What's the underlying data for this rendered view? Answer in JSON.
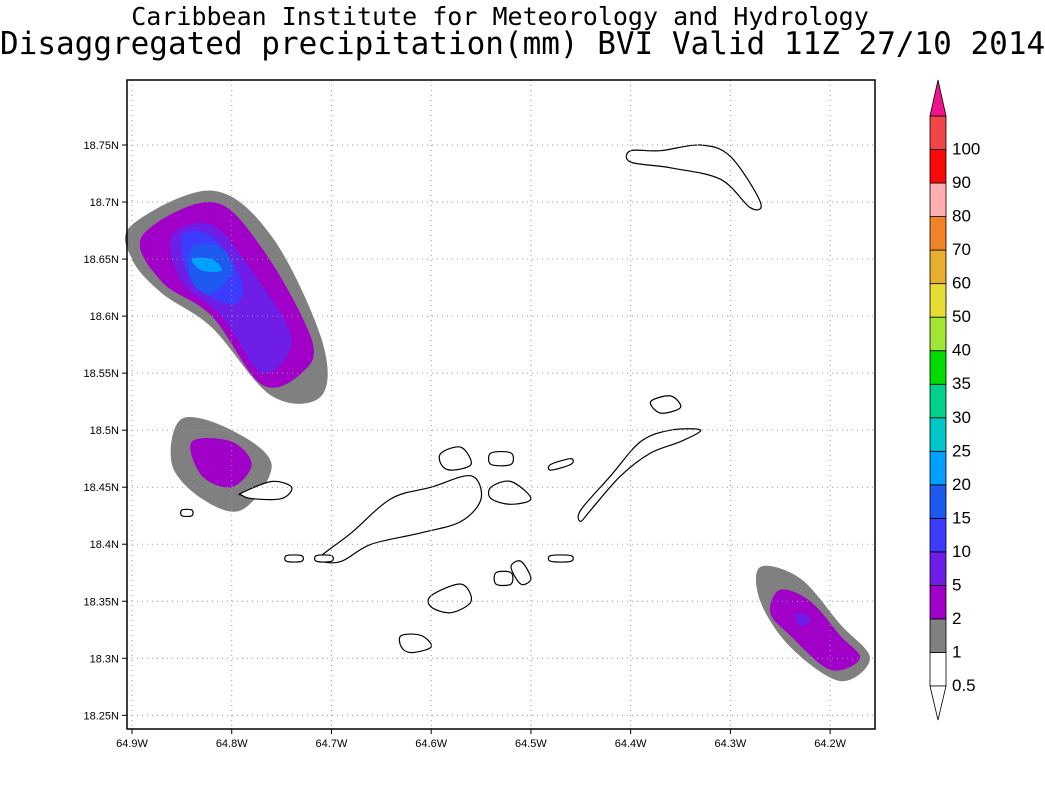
{
  "header": {
    "title_line1": "Caribbean Institute for Meteorology and Hydrology",
    "title_line2": "Disaggregated precipitation(mm) BVI Valid 11Z 27/10 2014"
  },
  "map": {
    "lon_range": [
      -64.905,
      -64.155
    ],
    "lat_range": [
      18.238,
      18.807
    ],
    "x_ticks": [
      {
        "v": -64.9,
        "label": "64.9W"
      },
      {
        "v": -64.8,
        "label": "64.8W"
      },
      {
        "v": -64.7,
        "label": "64.7W"
      },
      {
        "v": -64.6,
        "label": "64.6W"
      },
      {
        "v": -64.5,
        "label": "64.5W"
      },
      {
        "v": -64.4,
        "label": "64.4W"
      },
      {
        "v": -64.3,
        "label": "64.3W"
      },
      {
        "v": -64.2,
        "label": "64.2W"
      }
    ],
    "y_ticks": [
      {
        "v": 18.25,
        "label": "18.25N"
      },
      {
        "v": 18.3,
        "label": "18.3N"
      },
      {
        "v": 18.35,
        "label": "18.35N"
      },
      {
        "v": 18.4,
        "label": "18.4N"
      },
      {
        "v": 18.45,
        "label": "18.45N"
      },
      {
        "v": 18.5,
        "label": "18.5N"
      },
      {
        "v": 18.55,
        "label": "18.55N"
      },
      {
        "v": 18.6,
        "label": "18.6N"
      },
      {
        "v": 18.65,
        "label": "18.65N"
      },
      {
        "v": 18.7,
        "label": "18.7N"
      },
      {
        "v": 18.75,
        "label": "18.75N"
      }
    ],
    "grid": "dotted"
  },
  "legend": {
    "unit": "mm",
    "bins": [
      {
        "label": "0.5",
        "color": "#ffffff"
      },
      {
        "label": "1",
        "color": "#808080"
      },
      {
        "label": "2",
        "color": "#a000c8"
      },
      {
        "label": "5",
        "color": "#6e1ee6"
      },
      {
        "label": "10",
        "color": "#3c3cff"
      },
      {
        "label": "15",
        "color": "#1e5af0"
      },
      {
        "label": "20",
        "color": "#00a0ff"
      },
      {
        "label": "25",
        "color": "#00c8c8"
      },
      {
        "label": "30",
        "color": "#00d28c"
      },
      {
        "label": "35",
        "color": "#00dc00"
      },
      {
        "label": "40",
        "color": "#a0e632"
      },
      {
        "label": "50",
        "color": "#e6dc32"
      },
      {
        "label": "60",
        "color": "#e6af2d"
      },
      {
        "label": "70",
        "color": "#f08228"
      },
      {
        "label": "80",
        "color": "#ffafaf"
      },
      {
        "label": "90",
        "color": "#fa0a0a"
      },
      {
        "label": "100",
        "color": "#f04646"
      }
    ],
    "top_arrow_color": "#f0148c",
    "bottom_arrow_color": "#ffffff"
  },
  "precip_cells": [
    {
      "name": "northwest-cell",
      "levels": [
        {
          "color": "#808080",
          "lon": [
            -64.9,
            -64.82,
            -64.76,
            -64.71,
            -64.71,
            -64.76,
            -64.82,
            -64.87,
            -64.9
          ],
          "lat": [
            18.68,
            18.71,
            18.67,
            18.58,
            18.53,
            18.53,
            18.59,
            18.62,
            18.65
          ]
        },
        {
          "color": "#a000c8",
          "lon": [
            -64.89,
            -64.82,
            -64.77,
            -64.72,
            -64.73,
            -64.77,
            -64.82,
            -64.87
          ],
          "lat": [
            18.67,
            18.7,
            18.66,
            18.58,
            18.55,
            18.54,
            18.6,
            18.63
          ]
        },
        {
          "color": "#6e1ee6",
          "lon": [
            -64.86,
            -64.82,
            -64.78,
            -64.74,
            -64.77,
            -64.81,
            -64.85
          ],
          "lat": [
            18.67,
            18.68,
            18.64,
            18.58,
            18.55,
            18.6,
            18.63
          ]
        },
        {
          "color": "#3c3cff",
          "lon": [
            -64.85,
            -64.82,
            -64.79,
            -64.8,
            -64.84
          ],
          "lat": [
            18.67,
            18.67,
            18.63,
            18.61,
            18.63
          ]
        },
        {
          "color": "#1e5af0",
          "lon": [
            -64.84,
            -64.81,
            -64.8,
            -64.82,
            -64.84
          ],
          "lat": [
            18.66,
            18.66,
            18.64,
            18.62,
            18.63
          ]
        },
        {
          "color": "#00a0ff",
          "lon": [
            -64.84,
            -64.82,
            -64.81,
            -64.83
          ],
          "lat": [
            18.65,
            18.65,
            18.64,
            18.64
          ]
        }
      ]
    },
    {
      "name": "west-cell",
      "levels": [
        {
          "color": "#808080",
          "lon": [
            -64.85,
            -64.8,
            -64.76,
            -64.79,
            -64.83,
            -64.86
          ],
          "lat": [
            18.51,
            18.5,
            18.47,
            18.43,
            18.44,
            18.47
          ]
        },
        {
          "color": "#a000c8",
          "lon": [
            -64.84,
            -64.8,
            -64.78,
            -64.8,
            -64.83
          ],
          "lat": [
            18.49,
            18.49,
            18.47,
            18.45,
            18.46
          ]
        }
      ]
    },
    {
      "name": "southeast-cell",
      "levels": [
        {
          "color": "#808080",
          "lon": [
            -64.27,
            -64.23,
            -64.19,
            -64.16,
            -64.19,
            -64.24,
            -64.27
          ],
          "lat": [
            18.38,
            18.37,
            18.33,
            18.3,
            18.28,
            18.31,
            18.35
          ]
        },
        {
          "color": "#a000c8",
          "lon": [
            -64.25,
            -64.22,
            -64.19,
            -64.17,
            -64.2,
            -64.24,
            -64.26
          ],
          "lat": [
            18.36,
            18.35,
            18.32,
            18.3,
            18.29,
            18.32,
            18.34
          ]
        },
        {
          "color": "#6e1ee6",
          "lon": [
            -64.235,
            -64.225,
            -64.22,
            -64.23
          ],
          "lat": [
            18.338,
            18.338,
            18.333,
            18.328
          ]
        }
      ]
    }
  ],
  "islands": [
    {
      "name": "anegada",
      "lon": [
        -64.4,
        -64.37,
        -64.33,
        -64.3,
        -64.27,
        -64.28,
        -64.31,
        -64.36,
        -64.4
      ],
      "lat": [
        18.745,
        18.745,
        18.75,
        18.74,
        18.7,
        18.695,
        18.72,
        18.73,
        18.735
      ]
    },
    {
      "name": "tortola",
      "lon": [
        -64.71,
        -64.68,
        -64.64,
        -64.6,
        -64.56,
        -64.55,
        -64.57,
        -64.61,
        -64.66,
        -64.69,
        -64.71
      ],
      "lat": [
        18.39,
        18.41,
        18.44,
        18.45,
        18.46,
        18.44,
        18.42,
        18.41,
        18.4,
        18.385,
        18.385
      ]
    },
    {
      "name": "virgin-gorda",
      "lon": [
        -64.45,
        -64.42,
        -64.39,
        -64.36,
        -64.33,
        -64.35,
        -64.38,
        -64.41,
        -64.44,
        -64.45
      ],
      "lat": [
        18.43,
        18.46,
        18.49,
        18.5,
        18.5,
        18.49,
        18.48,
        18.46,
        18.43,
        18.42
      ]
    },
    {
      "name": "jost-van-dyke",
      "lon": [
        -64.79,
        -64.76,
        -64.74,
        -64.75,
        -64.78,
        -64.79
      ],
      "lat": [
        18.445,
        18.455,
        18.45,
        18.44,
        18.44,
        18.443
      ]
    },
    {
      "name": "peter-island",
      "lon": [
        -64.6,
        -64.57,
        -64.56,
        -64.58,
        -64.6
      ],
      "lat": [
        18.355,
        18.365,
        18.35,
        18.34,
        18.345
      ]
    },
    {
      "name": "norman-island",
      "lon": [
        -64.63,
        -64.61,
        -64.6,
        -64.62,
        -64.63
      ],
      "lat": [
        18.32,
        18.32,
        18.31,
        18.305,
        18.31
      ]
    },
    {
      "name": "beef-island",
      "lon": [
        -64.54,
        -64.52,
        -64.5,
        -64.52,
        -64.54
      ],
      "lat": [
        18.45,
        18.455,
        18.44,
        18.435,
        18.44
      ]
    },
    {
      "name": "guana-island",
      "lon": [
        -64.59,
        -64.57,
        -64.56,
        -64.58,
        -64.59
      ],
      "lat": [
        18.48,
        18.485,
        18.47,
        18.465,
        18.47
      ]
    },
    {
      "name": "great-camanoe",
      "lon": [
        -64.54,
        -64.52,
        -64.52,
        -64.54
      ],
      "lat": [
        18.48,
        18.48,
        18.47,
        18.47
      ]
    },
    {
      "name": "cooper-island",
      "lon": [
        -64.52,
        -64.51,
        -64.5,
        -64.51
      ],
      "lat": [
        18.38,
        18.385,
        18.37,
        18.365
      ]
    },
    {
      "name": "salt-island",
      "lon": [
        -64.535,
        -64.52,
        -64.52,
        -64.535
      ],
      "lat": [
        18.375,
        18.375,
        18.365,
        18.365
      ]
    },
    {
      "name": "ginger-island",
      "lon": [
        -64.48,
        -64.46,
        -64.46,
        -64.48
      ],
      "lat": [
        18.39,
        18.39,
        18.385,
        18.385
      ]
    },
    {
      "name": "scrub-island",
      "lon": [
        -64.48,
        -64.46,
        -64.46,
        -64.48
      ],
      "lat": [
        18.47,
        18.475,
        18.47,
        18.465
      ]
    },
    {
      "name": "necker-area",
      "lon": [
        -64.38,
        -64.36,
        -64.35,
        -64.37
      ],
      "lat": [
        18.525,
        18.53,
        18.52,
        18.515
      ]
    },
    {
      "name": "little-thatch",
      "lon": [
        -64.715,
        -64.7,
        -64.7,
        -64.715
      ],
      "lat": [
        18.39,
        18.39,
        18.385,
        18.385
      ]
    },
    {
      "name": "west-tip",
      "lon": [
        -64.745,
        -64.73,
        -64.73,
        -64.745
      ],
      "lat": [
        18.39,
        18.39,
        18.385,
        18.385
      ]
    },
    {
      "name": "sandy-cay",
      "lon": [
        -64.85,
        -64.84,
        -64.84,
        -64.85
      ],
      "lat": [
        18.43,
        18.43,
        18.425,
        18.425
      ]
    }
  ]
}
